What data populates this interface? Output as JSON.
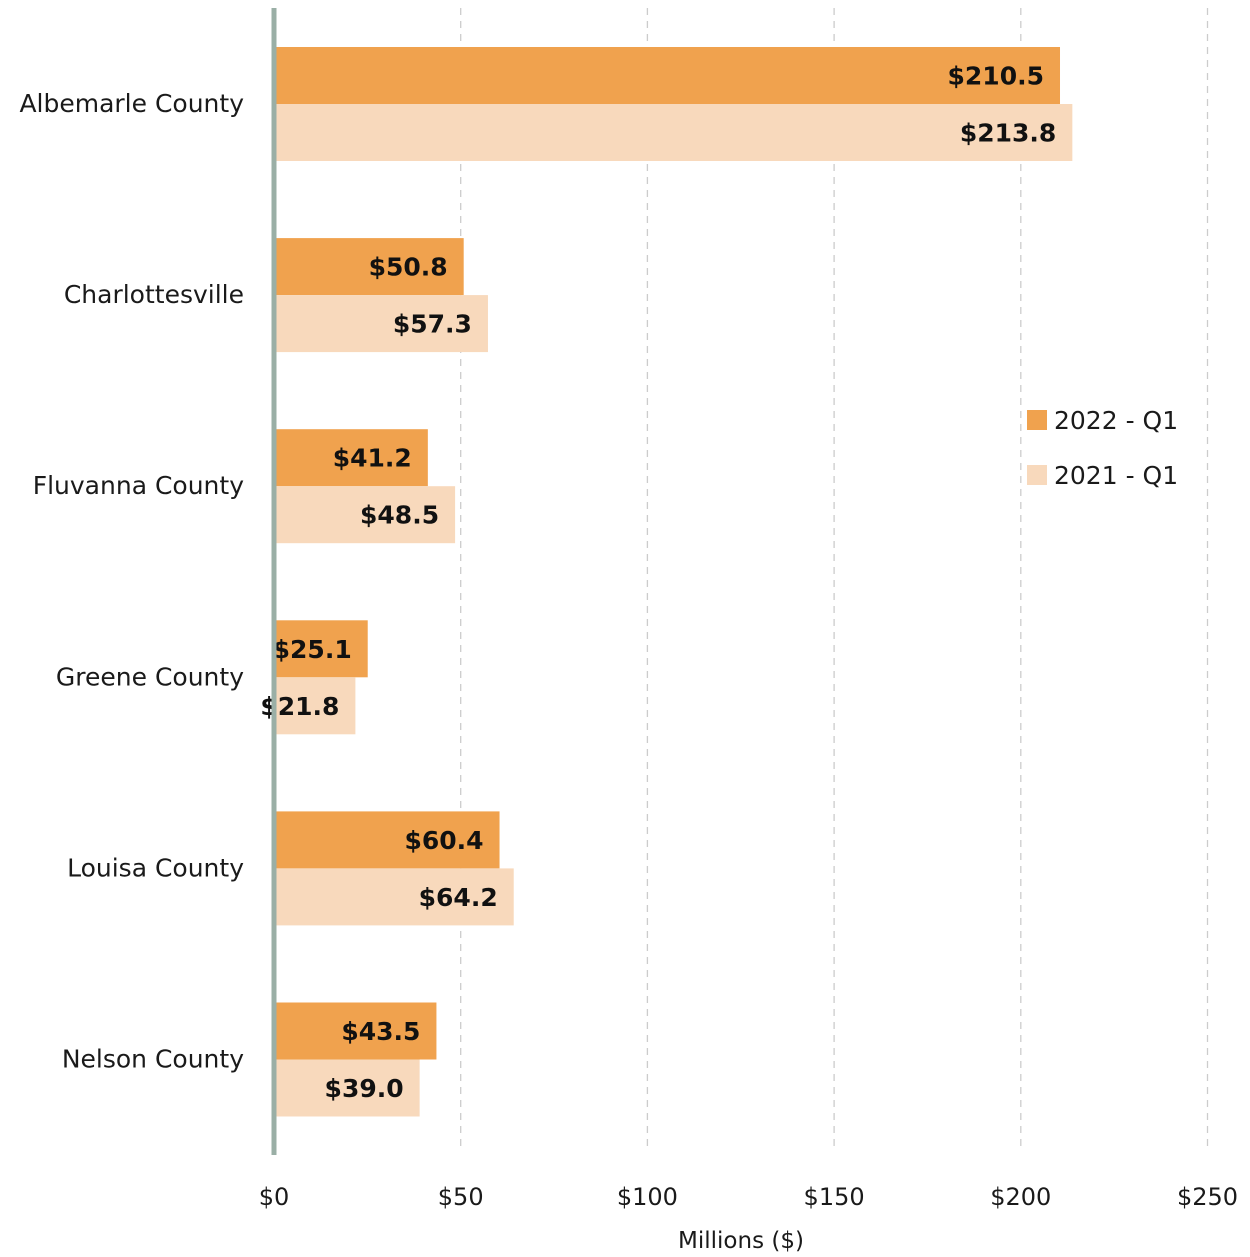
{
  "chart_data": {
    "type": "bar",
    "orientation": "horizontal",
    "categories": [
      "Albemarle County",
      "Charlottesville",
      "Fluvanna County",
      "Greene County",
      "Louisa County",
      "Nelson County"
    ],
    "series": [
      {
        "name": "2022 - Q1",
        "color": "#F0A24E",
        "values": [
          210.5,
          50.8,
          41.2,
          25.1,
          60.4,
          43.5
        ],
        "labels": [
          "$210.5",
          "$50.8",
          "$41.2",
          "$25.1",
          "$60.4",
          "$43.5"
        ]
      },
      {
        "name": "2021 - Q1",
        "color": "#F8D9BC",
        "values": [
          213.8,
          57.3,
          48.5,
          21.8,
          64.2,
          39.0
        ],
        "labels": [
          "$213.8",
          "$57.3",
          "$48.5",
          "$21.8",
          "$64.2",
          "$39.0"
        ]
      }
    ],
    "xlabel": "Millions ($)",
    "ylabel": "",
    "xlim": [
      0,
      250
    ],
    "xticks": [
      0,
      50,
      100,
      150,
      200,
      250
    ],
    "xtick_labels": [
      "$0",
      "$50",
      "$100",
      "$150",
      "$200",
      "$250"
    ],
    "grid": "vertical dashed",
    "legend_position": "right",
    "axis_color": "#9AAFA6",
    "grid_color": "#CCCCCC"
  }
}
